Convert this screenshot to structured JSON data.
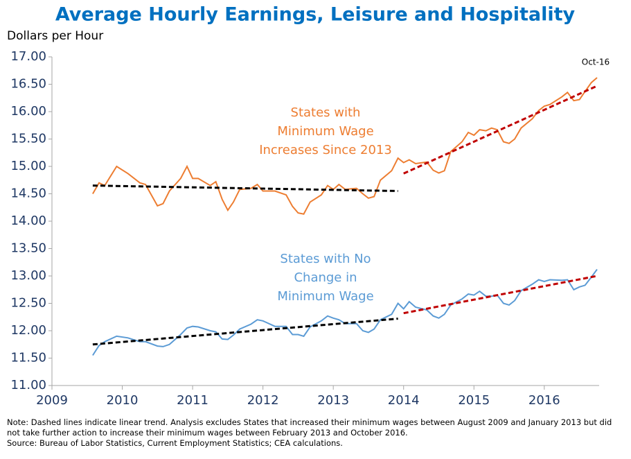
{
  "chart_data": {
    "type": "line",
    "title": "Average Hourly Earnings, Leisure and Hospitality",
    "y_label": "Dollars per Hour",
    "xlim": [
      2009,
      2016.78
    ],
    "xticks": [
      2009,
      2010,
      2011,
      2012,
      2013,
      2014,
      2015,
      2016
    ],
    "ylim": [
      11,
      17
    ],
    "yticks": [
      {
        "value": 11,
        "label": "11.00"
      },
      {
        "value": 11.5,
        "label": "11.50"
      },
      {
        "value": 12,
        "label": "12.00"
      },
      {
        "value": 12.5,
        "label": "12.50"
      },
      {
        "value": 13,
        "label": "13.00"
      },
      {
        "value": 13.5,
        "label": "13.50"
      },
      {
        "value": 14,
        "label": "14.00"
      },
      {
        "value": 14.5,
        "label": "14.50"
      },
      {
        "value": 15,
        "label": "15.00"
      },
      {
        "value": 15.5,
        "label": "15.50"
      },
      {
        "value": 16,
        "label": "16.00"
      },
      {
        "value": 16.5,
        "label": "16.50"
      },
      {
        "value": 17,
        "label": "17.00"
      }
    ],
    "grid": false,
    "x": [
      2009.58,
      2009.67,
      2009.75,
      2009.92,
      2010.08,
      2010.25,
      2010.33,
      2010.5,
      2010.58,
      2010.67,
      2010.83,
      2010.92,
      2011.0,
      2011.08,
      2011.25,
      2011.33,
      2011.42,
      2011.5,
      2011.58,
      2011.67,
      2011.83,
      2011.92,
      2012.0,
      2012.17,
      2012.33,
      2012.42,
      2012.5,
      2012.58,
      2012.67,
      2012.83,
      2012.92,
      2013.0,
      2013.08,
      2013.17,
      2013.33,
      2013.42,
      2013.5,
      2013.58,
      2013.67,
      2013.83,
      2013.92,
      2014.0,
      2014.08,
      2014.17,
      2014.33,
      2014.42,
      2014.5,
      2014.58,
      2014.67,
      2014.83,
      2014.92,
      2015.0,
      2015.08,
      2015.17,
      2015.25,
      2015.33,
      2015.42,
      2015.5,
      2015.58,
      2015.67,
      2015.83,
      2015.92,
      2016.0,
      2016.08,
      2016.25,
      2016.33,
      2016.42,
      2016.5,
      2016.58,
      2016.67,
      2016.75
    ],
    "series": [
      {
        "name_lines": [
          "States with",
          "Minimum Wage",
          "Increases Since 2013"
        ],
        "color": "#ed7d31",
        "values": [
          14.5,
          14.7,
          14.65,
          15.0,
          14.87,
          14.7,
          14.67,
          14.28,
          14.32,
          14.55,
          14.78,
          15.0,
          14.78,
          14.78,
          14.65,
          14.72,
          14.4,
          14.2,
          14.35,
          14.58,
          14.6,
          14.67,
          14.55,
          14.55,
          14.48,
          14.27,
          14.15,
          14.13,
          14.35,
          14.48,
          14.65,
          14.58,
          14.67,
          14.58,
          14.6,
          14.5,
          14.42,
          14.45,
          14.75,
          14.92,
          15.15,
          15.07,
          15.12,
          15.05,
          15.08,
          14.93,
          14.88,
          14.92,
          15.27,
          15.45,
          15.62,
          15.57,
          15.67,
          15.65,
          15.7,
          15.67,
          15.45,
          15.42,
          15.5,
          15.7,
          15.87,
          16.02,
          16.1,
          16.13,
          16.27,
          16.35,
          16.2,
          16.22,
          16.37,
          16.53,
          16.62
        ]
      },
      {
        "name_lines": [
          "States with No",
          "Change in",
          "Minimum Wage"
        ],
        "color": "#5b9bd5",
        "values": [
          11.55,
          11.73,
          11.8,
          11.9,
          11.87,
          11.8,
          11.8,
          11.72,
          11.71,
          11.75,
          11.93,
          12.05,
          12.08,
          12.07,
          12.0,
          11.98,
          11.85,
          11.84,
          11.92,
          12.03,
          12.12,
          12.2,
          12.18,
          12.08,
          12.08,
          11.93,
          11.93,
          11.9,
          12.07,
          12.18,
          12.27,
          12.23,
          12.2,
          12.13,
          12.13,
          12.0,
          11.97,
          12.03,
          12.2,
          12.3,
          12.5,
          12.4,
          12.53,
          12.43,
          12.38,
          12.27,
          12.23,
          12.3,
          12.47,
          12.58,
          12.67,
          12.65,
          12.72,
          12.63,
          12.63,
          12.65,
          12.5,
          12.47,
          12.55,
          12.73,
          12.85,
          12.93,
          12.9,
          12.93,
          12.92,
          12.93,
          12.75,
          12.8,
          12.83,
          12.98,
          13.12
        ]
      }
    ],
    "trends": [
      {
        "color": "#000000",
        "x": [
          2009.58,
          2013.92
        ],
        "values": [
          14.65,
          14.55
        ]
      },
      {
        "color": "#c00000",
        "x": [
          2014.0,
          2016.75
        ],
        "values": [
          14.87,
          16.47
        ]
      },
      {
        "color": "#000000",
        "x": [
          2009.58,
          2013.92
        ],
        "values": [
          11.75,
          12.22
        ]
      },
      {
        "color": "#c00000",
        "x": [
          2014.0,
          2016.75
        ],
        "values": [
          12.32,
          13.0
        ]
      }
    ],
    "annotation": "Oct-16",
    "notes": [
      "Note: Dashed lines indicate linear trend. Analysis excludes States that increased their minimum wages between August 2009 and January 2013  but did not take further action to increase their minimum wages between February 2013 and October 2016.",
      "Source: Bureau of Labor Statistics, Current Employment Statistics; CEA calculations."
    ]
  }
}
